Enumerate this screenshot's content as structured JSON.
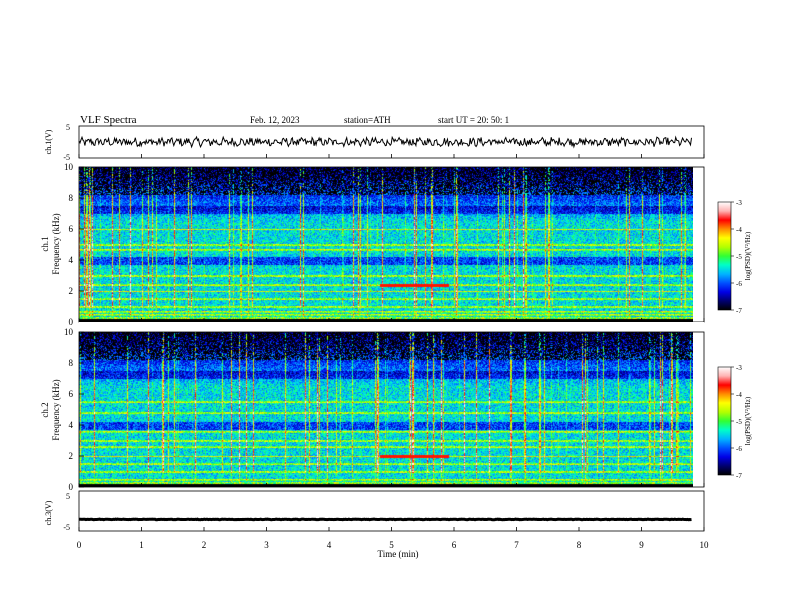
{
  "header": {
    "title": "VLF  Spectra",
    "date": "Feb. 12, 2023",
    "station": "station=ATH",
    "start": "start  UT  =    20: 50: 1"
  },
  "chart_data": [
    {
      "type": "line",
      "panel": "ch1-waveform",
      "ylabel": "ch.1(V)",
      "ylim": [
        -5,
        5
      ],
      "yticks": [
        "5",
        "-5"
      ],
      "xlim": [
        0,
        10
      ],
      "baseline": 0,
      "amplitude_approx": 1.2,
      "color": "#000000"
    },
    {
      "type": "heatmap",
      "panel": "ch1-spectrogram",
      "ylabel": "ch.1\nFrequency (kHz)",
      "ylim": [
        0,
        10
      ],
      "yticks": [
        "0",
        "2",
        "4",
        "6",
        "8",
        "10"
      ],
      "xlim": [
        0,
        9.8
      ],
      "colorbar": {
        "label": "log(PSD)(V²/Hz)",
        "range": [
          -7,
          -3
        ],
        "ticks": [
          "-3",
          "-4",
          "-5",
          "-6",
          "-7"
        ]
      },
      "strong_bands_khz": [
        0.3,
        0.5,
        0.7,
        1.0,
        1.5,
        2.0,
        2.4,
        3.0,
        4.7,
        5.0,
        6.0
      ],
      "highlight_segment": {
        "x": [
          4.8,
          5.9
        ],
        "freq_khz": 2.4
      }
    },
    {
      "type": "heatmap",
      "panel": "ch2-spectrogram",
      "ylabel": "ch.2\nFrequency (kHz)",
      "ylim": [
        0,
        10
      ],
      "yticks": [
        "0",
        "2",
        "4",
        "6",
        "8",
        "10"
      ],
      "xlim": [
        0,
        9.8
      ],
      "colorbar": {
        "label": "log(PSD)(V²/Hz)",
        "range": [
          -7,
          -3
        ],
        "ticks": [
          "-3",
          "-4",
          "-5",
          "-6",
          "-7"
        ]
      },
      "strong_bands_khz": [
        0.5,
        1.0,
        1.5,
        2.0,
        2.6,
        3.0,
        3.6,
        4.8,
        5.5
      ],
      "highlight_segment": {
        "x": [
          4.8,
          5.9
        ],
        "freq_khz": 2.0
      }
    },
    {
      "type": "line",
      "panel": "ch3-waveform",
      "ylabel": "ch.3(V)",
      "ylim": [
        -5,
        5
      ],
      "yticks": [
        "5",
        "-5"
      ],
      "xlim": [
        0,
        10
      ],
      "baseline": -2.1,
      "amplitude_approx": 0.1,
      "color": "#000000"
    }
  ],
  "xaxis": {
    "label": "Time  (min)",
    "ticks": [
      "0",
      "1",
      "2",
      "3",
      "4",
      "5",
      "6",
      "7",
      "8",
      "9",
      "10"
    ]
  },
  "colormap": [
    "#000000",
    "#00006e",
    "#0000e6",
    "#0050ff",
    "#00b4ff",
    "#00ffc8",
    "#32ff32",
    "#b4ff00",
    "#ffff00",
    "#ff8c00",
    "#ff0000",
    "#ffb4b4",
    "#ffffff"
  ]
}
